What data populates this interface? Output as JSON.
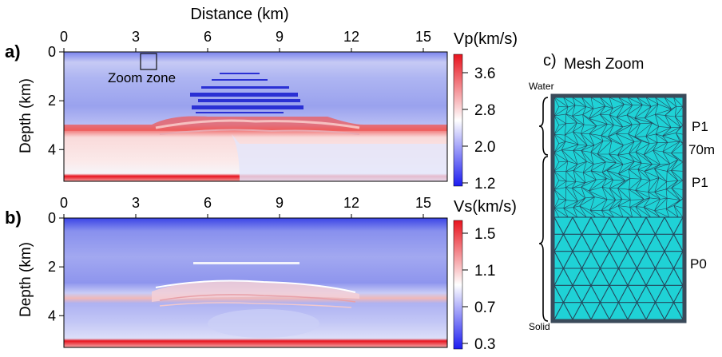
{
  "panels": {
    "a": {
      "label": "a)",
      "colorbar_title": "Vp(km/s)",
      "colorbar_ticks": [
        "3.6",
        "2.8",
        "2.0",
        "1.2"
      ],
      "zoom_label": "Zoom zone"
    },
    "b": {
      "label": "b)",
      "colorbar_title": "Vs(km/s)",
      "colorbar_ticks": [
        "1.5",
        "1.1",
        "0.7",
        "0.3"
      ]
    },
    "c": {
      "label": "c)",
      "title": "Mesh Zoom",
      "label_top": "Water",
      "label_bottom": "Solid",
      "order_labels": [
        "P1",
        "70m",
        "P1",
        "P0"
      ]
    }
  },
  "axes": {
    "xlabel": "Distance (km)",
    "ylabel": "Depth (km)",
    "x_ticks": [
      "0",
      "3",
      "6",
      "9",
      "12",
      "15"
    ],
    "y_ticks": [
      "0",
      "2",
      "4"
    ]
  },
  "colors": {
    "low": "#1c1cf0",
    "mid": "#ffffff",
    "high": "#e8141e",
    "mesh_fill": "#1fd2d6",
    "mesh_line": "#23475c"
  }
}
